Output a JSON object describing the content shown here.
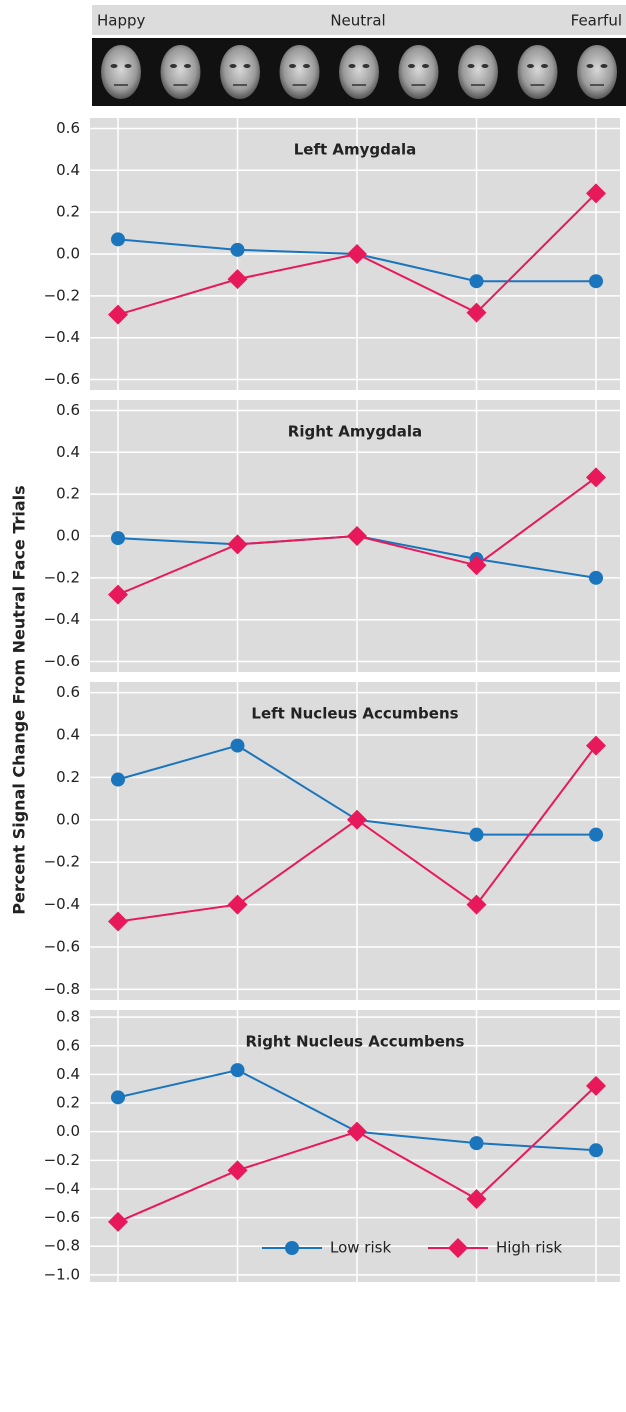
{
  "face_strip_labels": [
    "Happy",
    "Neutral",
    "Fearful"
  ],
  "y_axis_label": "Percent Signal Change From Neutral Face Trials",
  "chart_data": [
    {
      "type": "line",
      "title": "Left Amygdala",
      "categories": [
        null,
        null,
        null,
        null,
        null
      ],
      "series": [
        {
          "color": "#1a75bc",
          "marker": "circle",
          "values": [
            0.07,
            0.02,
            0,
            -0.13,
            -0.13
          ]
        },
        {
          "color": "#e8195a",
          "marker": "diamond",
          "values": [
            -0.29,
            -0.12,
            0,
            -0.28,
            0.29
          ]
        }
      ],
      "ylim": [
        -0.65,
        0.65
      ],
      "yticks": [
        0.6,
        0.4,
        0.2,
        {
          "value": 0,
          "label": "0.0"
        },
        {
          "value": -0.2,
          "label": "−0.2"
        },
        {
          "value": -0.4,
          "label": "−0.4"
        },
        {
          "value": -0.6,
          "label": "−0.6"
        }
      ],
      "grid": true
    },
    {
      "type": "line",
      "title": "Right Amygdala",
      "categories": [
        null,
        null,
        null,
        null,
        null
      ],
      "series": [
        {
          "color": "#1a75bc",
          "marker": "circle",
          "values": [
            -0.01,
            -0.04,
            0,
            -0.11,
            -0.2
          ]
        },
        {
          "color": "#e8195a",
          "marker": "diamond",
          "values": [
            -0.28,
            -0.04,
            0,
            -0.14,
            0.28
          ]
        }
      ],
      "ylim": [
        -0.65,
        0.65
      ],
      "yticks": [
        0.6,
        0.4,
        0.2,
        {
          "value": 0,
          "label": "0.0"
        },
        {
          "value": -0.2,
          "label": "−0.2"
        },
        {
          "value": -0.4,
          "label": "−0.4"
        },
        {
          "value": -0.6,
          "label": "−0.6"
        }
      ],
      "grid": true
    },
    {
      "type": "line",
      "title": "Left Nucleus Accumbens",
      "categories": [
        null,
        null,
        null,
        null,
        null
      ],
      "series": [
        {
          "color": "#1a75bc",
          "marker": "circle",
          "values": [
            0.19,
            0.35,
            0,
            -0.07,
            -0.07
          ]
        },
        {
          "color": "#e8195a",
          "marker": "diamond",
          "values": [
            -0.48,
            -0.4,
            0,
            -0.4,
            0.35
          ]
        }
      ],
      "ylim": [
        -0.85,
        0.65
      ],
      "yticks": [
        0.6,
        0.4,
        0.2,
        {
          "value": 0,
          "label": "0.0"
        },
        {
          "value": -0.2,
          "label": "−0.2"
        },
        {
          "value": -0.4,
          "label": "−0.4"
        },
        {
          "value": -0.6,
          "label": "−0.6"
        },
        {
          "value": -0.8,
          "label": "−0.8"
        }
      ],
      "grid": true
    },
    {
      "type": "line",
      "title": "Right Nucleus Accumbens",
      "categories": [
        null,
        null,
        null,
        null,
        null
      ],
      "series": [
        {
          "name": "Low risk",
          "color": "#1a75bc",
          "marker": "circle",
          "values": [
            0.24,
            0.43,
            0,
            -0.08,
            -0.13
          ]
        },
        {
          "name": "High risk",
          "color": "#e8195a",
          "marker": "diamond",
          "values": [
            -0.63,
            -0.27,
            0,
            -0.47,
            0.32
          ]
        }
      ],
      "ylim": [
        -1.05,
        0.85
      ],
      "yticks": [
        0.8,
        0.6,
        0.4,
        0.2,
        {
          "value": 0,
          "label": "0.0"
        },
        {
          "value": -0.2,
          "label": "−0.2"
        },
        {
          "value": -0.4,
          "label": "−0.4"
        },
        {
          "value": -0.6,
          "label": "−0.6"
        },
        {
          "value": -0.8,
          "label": "−0.8"
        },
        {
          "value": -1.0,
          "label": "−1.0"
        }
      ],
      "grid": true,
      "legend": "lower right"
    }
  ]
}
